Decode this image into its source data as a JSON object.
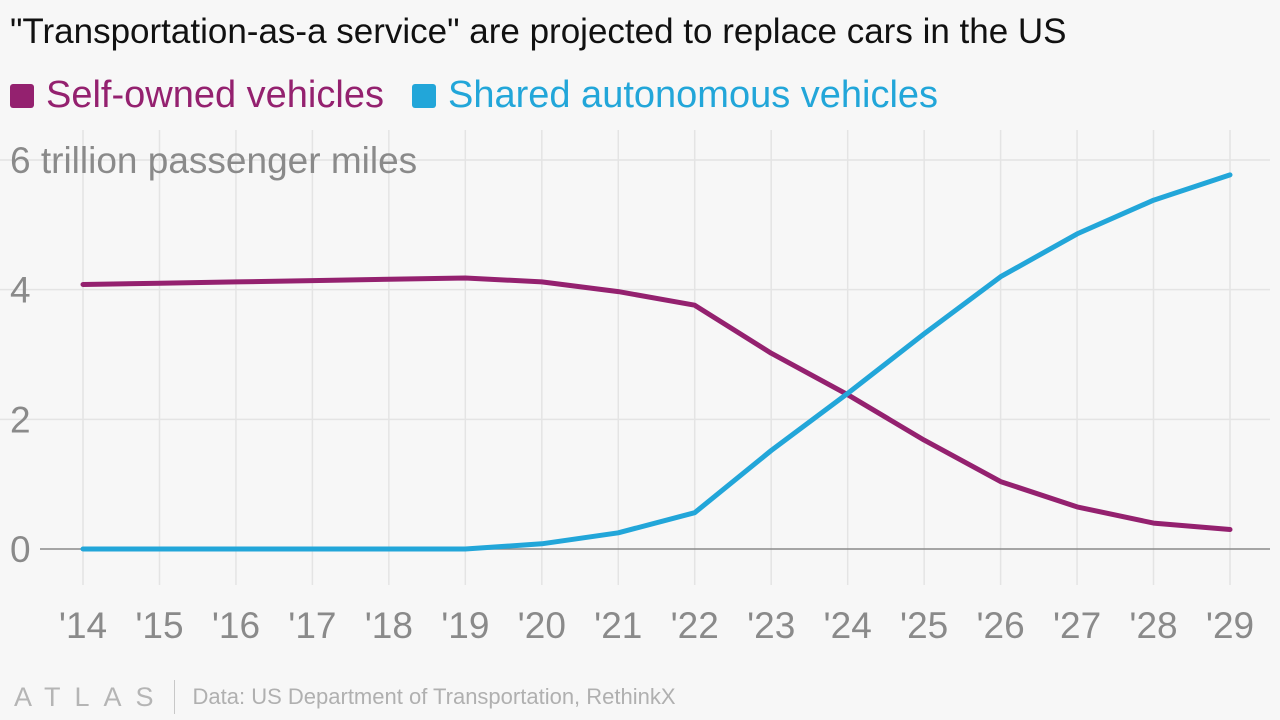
{
  "chart_data": {
    "type": "line",
    "title": "\"Transportation-as-a service\" are projected to replace cars in the US",
    "ylabel": "6 trillion passenger miles",
    "x": [
      "'14",
      "'15",
      "'16",
      "'17",
      "'18",
      "'19",
      "'20",
      "'21",
      "'22",
      "'23",
      "'24",
      "'25",
      "'26",
      "'27",
      "'28",
      "'29"
    ],
    "y_ticks": [
      "0",
      "2",
      "4"
    ],
    "ylim": [
      0,
      6
    ],
    "grid": true,
    "legend_position": "top-left",
    "series": [
      {
        "name": "Self-owned vehicles",
        "color": "#94216f",
        "values": [
          4.08,
          4.1,
          4.12,
          4.14,
          4.16,
          4.18,
          4.12,
          3.97,
          3.76,
          3.02,
          2.38,
          1.68,
          1.04,
          0.65,
          0.4,
          0.3
        ]
      },
      {
        "name": "Shared autonomous vehicles",
        "color": "#22a6d9",
        "values": [
          0,
          0,
          0,
          0,
          0,
          0,
          0.08,
          0.25,
          0.56,
          1.52,
          2.4,
          3.32,
          4.2,
          4.86,
          5.38,
          5.77
        ]
      }
    ]
  },
  "footer": {
    "brand": "ATLAS",
    "source": "Data: US Department of Transportation, RethinkX"
  }
}
